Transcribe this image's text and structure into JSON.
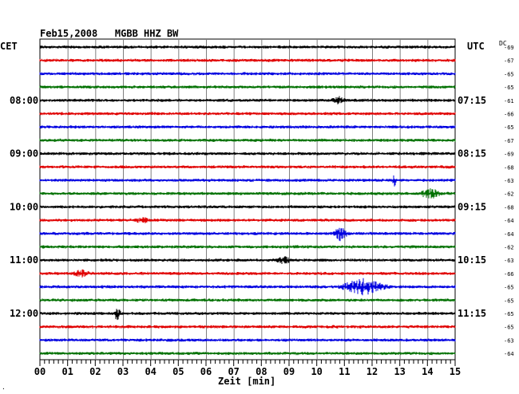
{
  "header": {
    "title": "Feb15,2008   MGBB HHZ BW",
    "left_tz": "CET",
    "right_tz": "UTC",
    "dc_label": "DC",
    "footnote": "."
  },
  "chart_data": {
    "type": "line",
    "title": "Feb15,2008   MGBB HHZ BW",
    "xlabel": "Zeit [min]",
    "ylabel": "",
    "xlim": [
      0,
      15
    ],
    "grid": true,
    "x_ticks": [
      "00",
      "01",
      "02",
      "03",
      "04",
      "05",
      "06",
      "07",
      "08",
      "09",
      "10",
      "11",
      "12",
      "13",
      "14",
      "15"
    ],
    "left_hour_labels": [
      {
        "row": 4,
        "label": "08:00"
      },
      {
        "row": 8,
        "label": "09:00"
      },
      {
        "row": 12,
        "label": "10:00"
      },
      {
        "row": 16,
        "label": "11:00"
      },
      {
        "row": 20,
        "label": "12:00"
      }
    ],
    "right_hour_labels": [
      {
        "row": 4,
        "label": "07:15"
      },
      {
        "row": 8,
        "label": "08:15"
      },
      {
        "row": 12,
        "label": "09:15"
      },
      {
        "row": 16,
        "label": "10:15"
      },
      {
        "row": 20,
        "label": "11:15"
      }
    ],
    "trace_colors": [
      "#000000",
      "#e00000",
      "#0000e0",
      "#007000"
    ],
    "dc_values": [
      "-69",
      "-67",
      "-65",
      "-65",
      "-61",
      "-66",
      "-65",
      "-67",
      "-69",
      "-68",
      "-63",
      "-62",
      "-68",
      "-64",
      "-64",
      "-62",
      "-63",
      "-66",
      "-65",
      "-65",
      "-65",
      "-65",
      "-63",
      "-64"
    ],
    "events": [
      {
        "row": 4,
        "minute": 10.8,
        "amp": 0.5,
        "width": 0.3
      },
      {
        "row": 10,
        "minute": 12.8,
        "amp": 1.0,
        "width": 0.08
      },
      {
        "row": 11,
        "minute": 14.1,
        "amp": 0.8,
        "width": 0.4
      },
      {
        "row": 14,
        "minute": 10.85,
        "amp": 1.0,
        "width": 0.3
      },
      {
        "row": 16,
        "minute": 8.8,
        "amp": 0.5,
        "width": 0.3
      },
      {
        "row": 17,
        "minute": 1.5,
        "amp": 0.5,
        "width": 0.4
      },
      {
        "row": 18,
        "minute": 11.7,
        "amp": 1.2,
        "width": 1.0
      },
      {
        "row": 20,
        "minute": 2.8,
        "amp": 1.3,
        "width": 0.15
      },
      {
        "row": 13,
        "minute": 3.7,
        "amp": 0.4,
        "width": 0.3
      }
    ]
  }
}
